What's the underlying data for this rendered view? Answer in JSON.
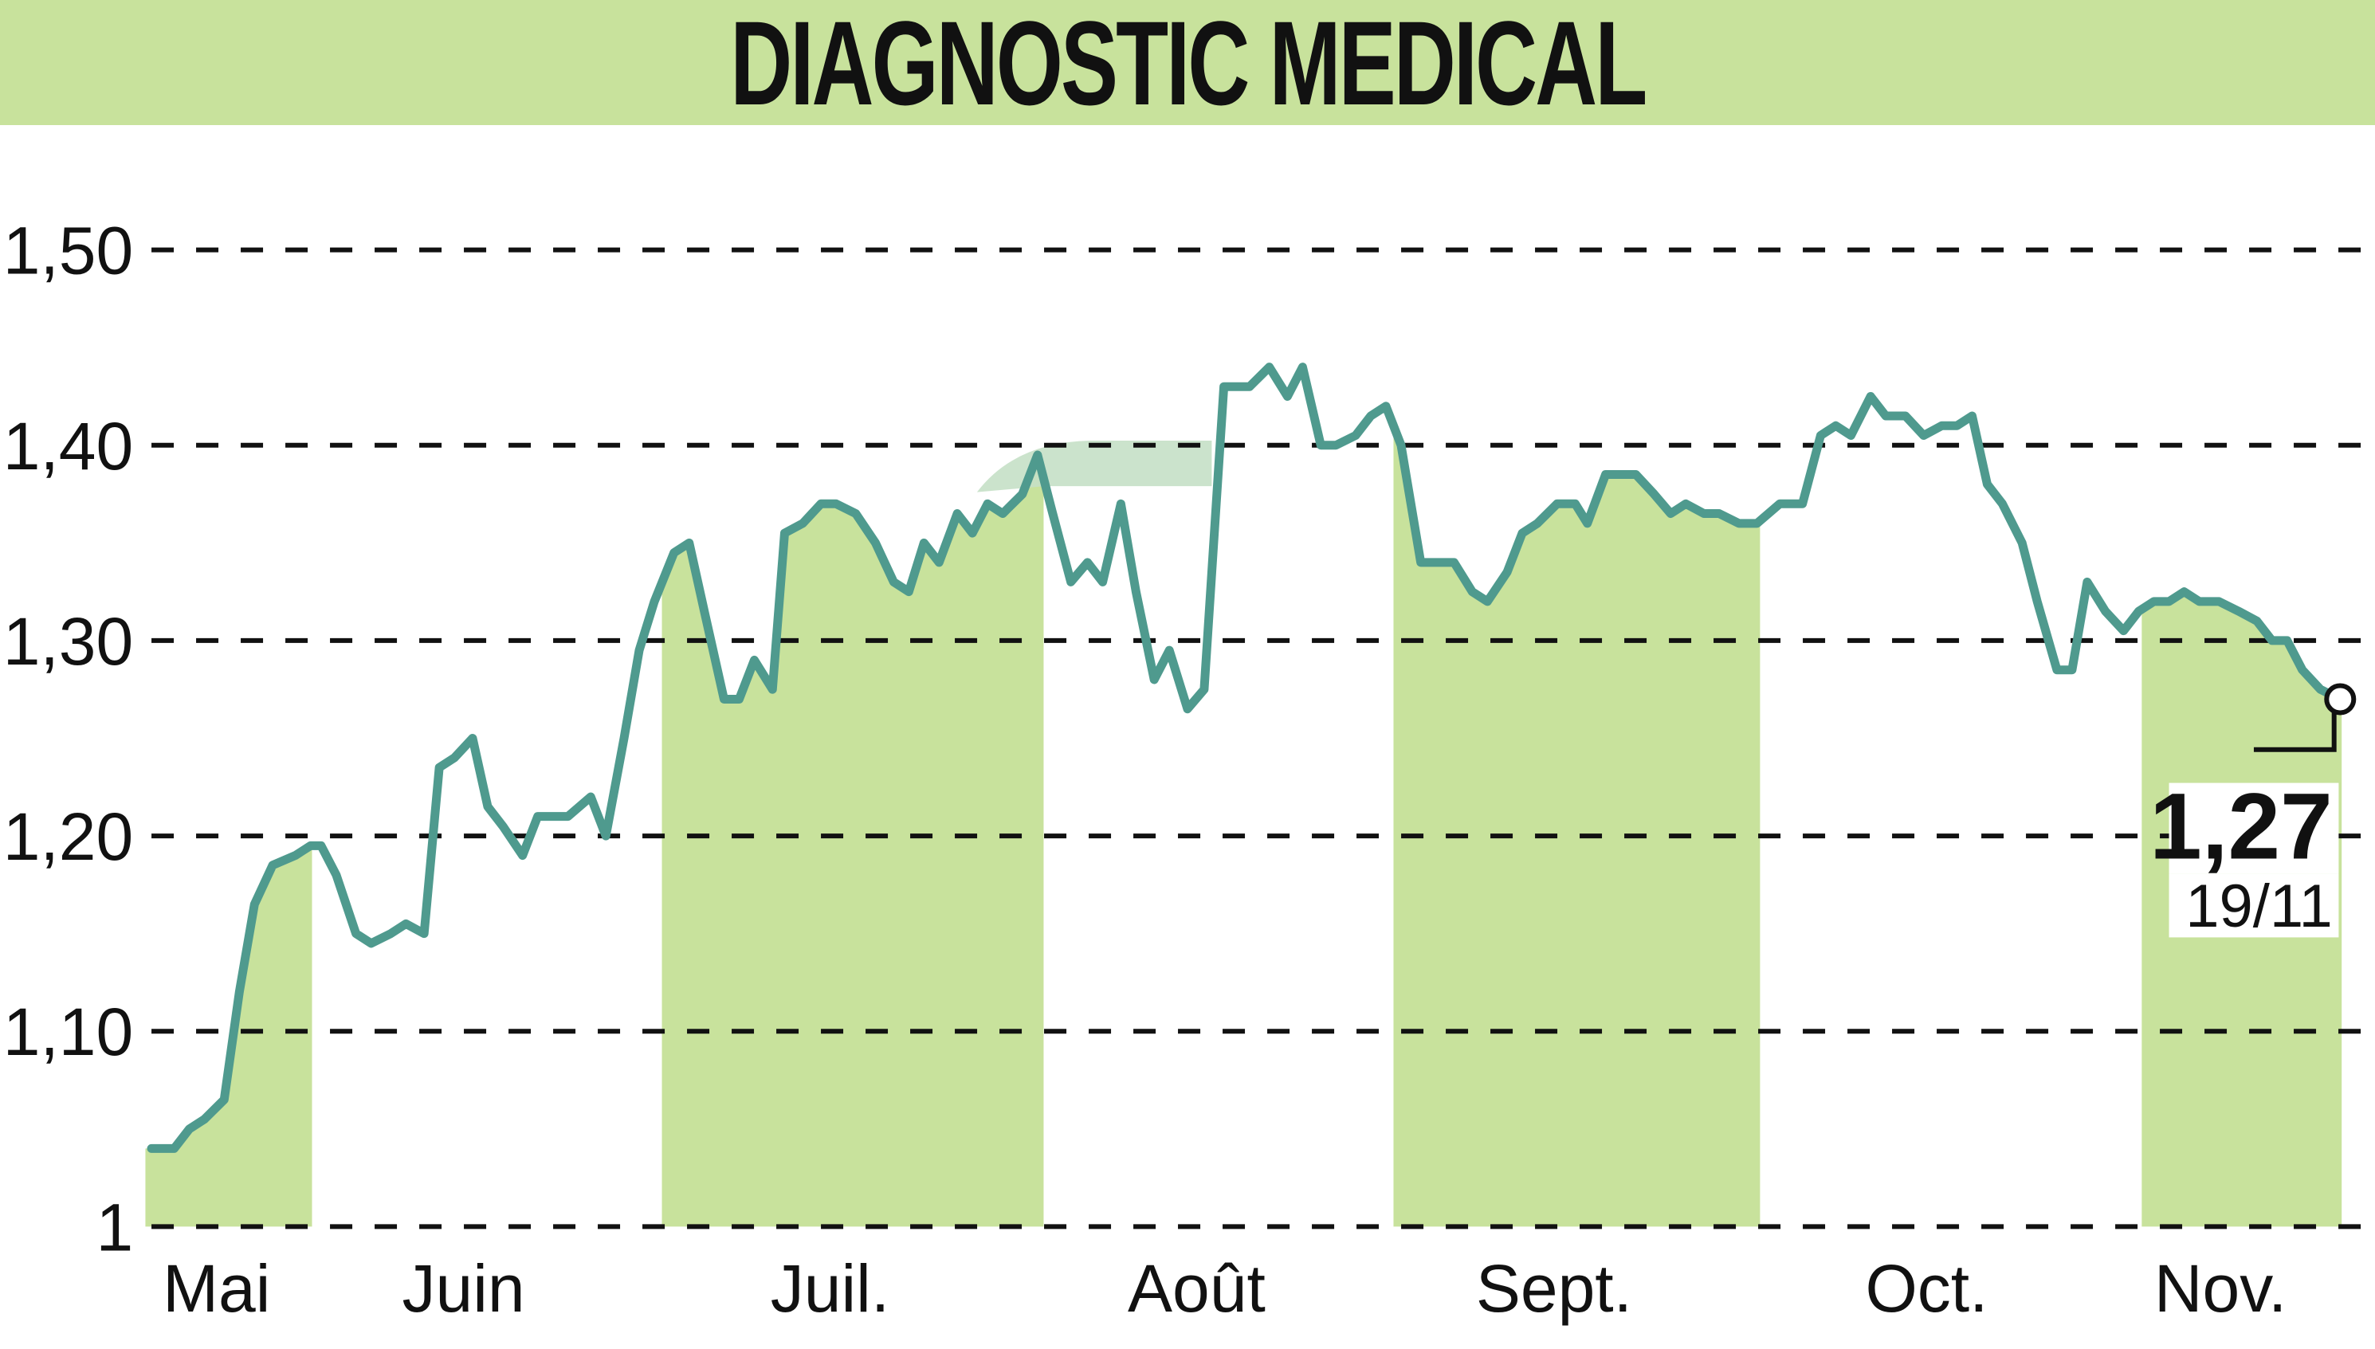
{
  "header": {
    "title": "DIAGNOSTIC MEDICAL"
  },
  "colors": {
    "header_bg": "#c8e29c",
    "band": "#c8e29c",
    "line": "#4f9a8e",
    "grid": "#111111"
  },
  "annotation": {
    "last_value": "1,27",
    "last_date": "19/11"
  },
  "chart_data": {
    "type": "line",
    "title": "DIAGNOSTIC MEDICAL",
    "xlabel": "",
    "ylabel": "",
    "ylim": [
      1.0,
      1.5
    ],
    "yticks": [
      "1",
      "1,10",
      "1,20",
      "1,30",
      "1,40",
      "1,50"
    ],
    "ytick_values": [
      1.0,
      1.1,
      1.2,
      1.3,
      1.4,
      1.5
    ],
    "grid": true,
    "legend": "none",
    "categories": [
      "Mai",
      "Juin",
      "Juil.",
      "Août",
      "Sept.",
      "Oct.",
      "Nov."
    ],
    "month_label_x": [
      143,
      306,
      548,
      790,
      1026,
      1272,
      1466
    ],
    "shaded_months": [
      "Mai",
      "Juil.",
      "Sept.",
      "Nov."
    ],
    "last_point": {
      "value": 1.27,
      "date": "19/11"
    },
    "series": [
      {
        "name": "DIAGNOSTIC MEDICAL",
        "x": [
          100,
          115,
          125,
          135,
          148,
          158,
          168,
          180,
          195,
          205,
          212,
          222,
          235,
          245,
          258,
          268,
          280,
          290,
          300,
          312,
          322,
          332,
          345,
          355,
          375,
          390,
          400,
          412,
          422,
          432,
          445,
          455,
          465,
          478,
          488,
          498,
          510,
          518,
          530,
          542,
          552,
          565,
          578,
          590,
          600,
          610,
          620,
          632,
          642,
          652,
          662,
          675,
          685,
          695,
          707,
          718,
          728,
          740,
          750,
          762,
          772,
          784,
          795,
          808,
          825,
          838,
          850,
          860,
          872,
          882,
          895,
          905,
          915,
          925,
          938,
          960,
          972,
          982,
          995,
          1005,
          1015,
          1028,
          1040,
          1048,
          1060,
          1080,
          1092,
          1103,
          1113,
          1125,
          1135,
          1148,
          1160,
          1175,
          1190,
          1202,
          1212,
          1222,
          1235,
          1245,
          1258,
          1270,
          1282,
          1292,
          1302,
          1312,
          1322,
          1335,
          1345,
          1358,
          1368,
          1378,
          1390,
          1402,
          1412,
          1422,
          1432,
          1442,
          1452,
          1465,
          1478,
          1490,
          1500,
          1510,
          1520,
          1532,
          1545
        ],
        "values": [
          1.04,
          1.04,
          1.05,
          1.055,
          1.065,
          1.12,
          1.165,
          1.185,
          1.19,
          1.195,
          1.195,
          1.18,
          1.15,
          1.145,
          1.15,
          1.155,
          1.15,
          1.235,
          1.24,
          1.25,
          1.215,
          1.205,
          1.19,
          1.21,
          1.21,
          1.22,
          1.2,
          1.25,
          1.295,
          1.32,
          1.345,
          1.35,
          1.315,
          1.27,
          1.27,
          1.29,
          1.275,
          1.355,
          1.36,
          1.37,
          1.37,
          1.365,
          1.35,
          1.33,
          1.325,
          1.35,
          1.34,
          1.365,
          1.355,
          1.37,
          1.365,
          1.375,
          1.395,
          1.365,
          1.33,
          1.34,
          1.33,
          1.37,
          1.325,
          1.28,
          1.295,
          1.265,
          1.275,
          1.43,
          1.43,
          1.44,
          1.425,
          1.44,
          1.4,
          1.4,
          1.405,
          1.415,
          1.42,
          1.4,
          1.34,
          1.34,
          1.325,
          1.32,
          1.335,
          1.355,
          1.36,
          1.37,
          1.37,
          1.36,
          1.385,
          1.385,
          1.375,
          1.365,
          1.37,
          1.365,
          1.365,
          1.36,
          1.36,
          1.37,
          1.37,
          1.405,
          1.41,
          1.405,
          1.425,
          1.415,
          1.415,
          1.405,
          1.41,
          1.41,
          1.415,
          1.38,
          1.37,
          1.35,
          1.32,
          1.285,
          1.285,
          1.33,
          1.315,
          1.305,
          1.315,
          1.32,
          1.32,
          1.325,
          1.32,
          1.32,
          1.315,
          1.31,
          1.3,
          1.3,
          1.285,
          1.275,
          1.27
        ]
      }
    ]
  }
}
